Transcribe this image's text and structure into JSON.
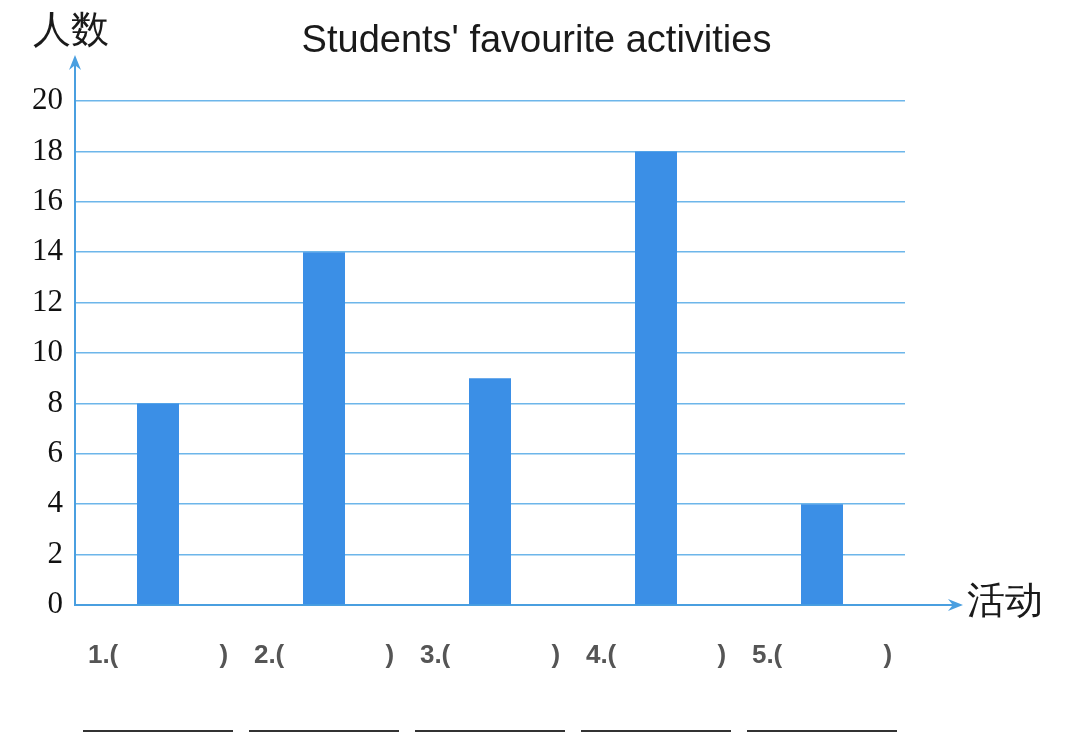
{
  "chart_data": {
    "type": "bar",
    "title": "Students' favourite activities",
    "xlabel": "活动",
    "ylabel": "人数",
    "categories": [
      "1.(              )",
      "2.(              )",
      "3.(              )",
      "4.(              )",
      "5.(              )"
    ],
    "values": [
      8,
      14,
      9,
      18,
      4
    ],
    "color": "#3b8fe6",
    "ylim": [
      0,
      20
    ],
    "yticks": [
      0,
      2,
      4,
      6,
      8,
      10,
      12,
      14,
      16,
      18,
      20
    ],
    "grid": "y"
  }
}
